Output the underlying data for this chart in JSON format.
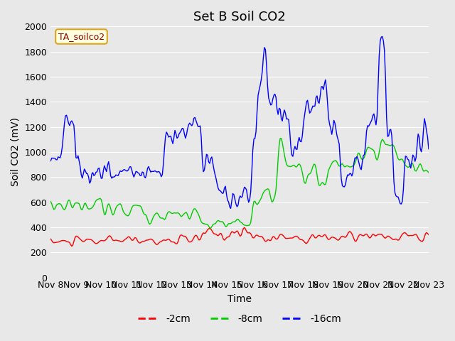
{
  "title": "Set B Soil CO2",
  "ylabel": "Soil CO2 (mV)",
  "xlabel": "Time",
  "annotation": "TA_soilco2",
  "ylim": [
    0,
    2000
  ],
  "yticks": [
    0,
    200,
    400,
    600,
    800,
    1000,
    1200,
    1400,
    1600,
    1800,
    2000
  ],
  "xtick_labels": [
    "Nov 8",
    "Nov 9",
    "Nov 10",
    "Nov 11",
    "Nov 12",
    "Nov 13",
    "Nov 14",
    "Nov 15",
    "Nov 16",
    "Nov 17",
    "Nov 18",
    "Nov 19",
    "Nov 20",
    "Nov 21",
    "Nov 22",
    "Nov 23"
  ],
  "legend_labels": [
    "-2cm",
    "-8cm",
    "-16cm"
  ],
  "legend_colors": [
    "#ff0000",
    "#00cc00",
    "#0000ff"
  ],
  "line_colors": [
    "#ff0000",
    "#00cc00",
    "#0000ff"
  ],
  "bg_color": "#e8e8e8",
  "plot_bg_color": "#e8e8e8",
  "title_fontsize": 13,
  "axis_fontsize": 10,
  "tick_fontsize": 9
}
